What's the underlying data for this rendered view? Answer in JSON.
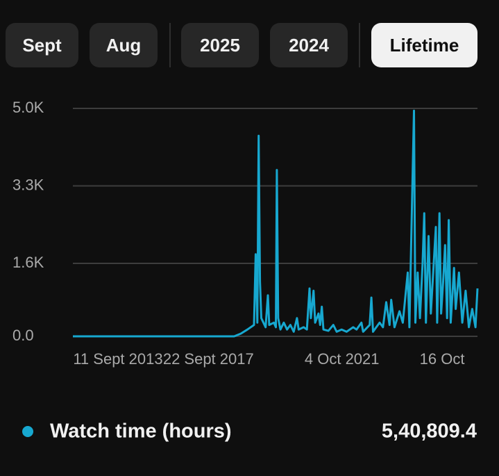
{
  "tabs": [
    {
      "label": "Sept"
    },
    {
      "label": "Aug"
    },
    {
      "label": "2025"
    },
    {
      "label": "2024"
    },
    {
      "label": "Lifetime",
      "active": true
    }
  ],
  "chart_data": {
    "type": "line",
    "x": [
      2013.62,
      2018.5,
      2018.7,
      2018.9,
      2019.1,
      2019.15,
      2019.2,
      2019.24,
      2019.28,
      2019.32,
      2019.45,
      2019.52,
      2019.56,
      2019.7,
      2019.76,
      2019.79,
      2019.83,
      2019.9,
      2020.0,
      2020.1,
      2020.2,
      2020.3,
      2020.4,
      2020.45,
      2020.6,
      2020.7,
      2020.78,
      2020.82,
      2020.9,
      2020.95,
      2021.05,
      2021.1,
      2021.15,
      2021.2,
      2021.35,
      2021.5,
      2021.6,
      2021.75,
      2021.9,
      2022.1,
      2022.2,
      2022.35,
      2022.4,
      2022.6,
      2022.65,
      2022.7,
      2022.9,
      2023.0,
      2023.1,
      2023.2,
      2023.25,
      2023.35,
      2023.5,
      2023.6,
      2023.75,
      2023.8,
      2023.94,
      2023.98,
      2024.05,
      2024.12,
      2024.2,
      2024.25,
      2024.3,
      2024.38,
      2024.45,
      2024.52,
      2024.6,
      2024.64,
      2024.71,
      2024.76,
      2024.82,
      2024.88,
      2024.94,
      2024.99,
      2025.05,
      2025.15,
      2025.2,
      2025.3,
      2025.4,
      2025.5,
      2025.6,
      2025.7,
      2025.8,
      2025.86
    ],
    "series": [
      {
        "name": "Watch time (hours)",
        "color": "#17a8d0",
        "values": [
          0,
          0,
          60,
          150,
          250,
          1800,
          300,
          4400,
          1200,
          400,
          200,
          900,
          250,
          300,
          200,
          3650,
          400,
          150,
          300,
          150,
          250,
          100,
          400,
          150,
          200,
          150,
          1050,
          400,
          1000,
          300,
          500,
          250,
          650,
          150,
          120,
          250,
          100,
          150,
          100,
          200,
          150,
          300,
          100,
          250,
          850,
          100,
          300,
          200,
          750,
          250,
          800,
          200,
          550,
          300,
          1400,
          200,
          4950,
          300,
          1400,
          400,
          1600,
          2700,
          300,
          2200,
          500,
          1400,
          2400,
          300,
          2700,
          500,
          1200,
          2000,
          400,
          2550,
          300,
          1500,
          600,
          1400,
          300,
          1000,
          200,
          600,
          200,
          1050
        ]
      }
    ],
    "xlim": [
      2013.62,
      2025.86
    ],
    "xticks": [
      {
        "value": 2013.69,
        "label": "11 Sept 2013"
      },
      {
        "value": 2017.72,
        "label": "22 Sept 2017"
      },
      {
        "value": 2021.76,
        "label": "4 Oct 2021"
      },
      {
        "value": 2024.79,
        "label": "16 Oct"
      }
    ],
    "ylim": [
      0,
      5000
    ],
    "yticks": [
      {
        "value": 0,
        "label": "0.0"
      },
      {
        "value": 1600,
        "label": "1.6K"
      },
      {
        "value": 3300,
        "label": "3.3K"
      },
      {
        "value": 5000,
        "label": "5.0K"
      }
    ],
    "grid": true,
    "total": "5,40,809.4"
  }
}
